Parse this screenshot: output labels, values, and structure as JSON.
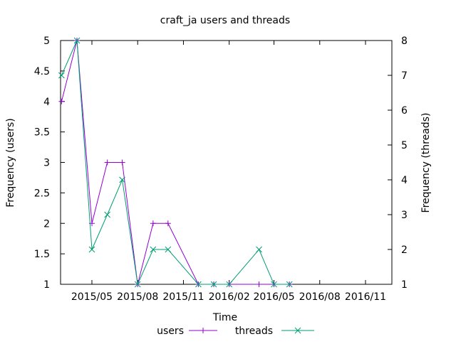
{
  "chart_data": {
    "type": "line",
    "title": "craft_ja users and threads",
    "xlabel": "Time",
    "ylabel_left": "Frequency (users)",
    "ylabel_right": "Frequency (threads)",
    "ylim_left": [
      1,
      5
    ],
    "ylim_right": [
      1,
      8
    ],
    "xlim": [
      "2015-02-27",
      "2016-12-24"
    ],
    "x_ticks": [
      {
        "date": "2015-05-01",
        "label": "2015/05"
      },
      {
        "date": "2015-08-01",
        "label": "2015/08"
      },
      {
        "date": "2015-11-01",
        "label": "2015/11"
      },
      {
        "date": "2016-02-01",
        "label": "2016/02"
      },
      {
        "date": "2016-05-01",
        "label": "2016/05"
      },
      {
        "date": "2016-08-01",
        "label": "2016/08"
      },
      {
        "date": "2016-11-01",
        "label": "2016/11"
      }
    ],
    "y_left_ticks": [
      "1",
      "1.5",
      "2",
      "2.5",
      "3",
      "3.5",
      "4",
      "4.5",
      "5"
    ],
    "y_right_ticks": [
      "1",
      "2",
      "3",
      "4",
      "5",
      "6",
      "7",
      "8"
    ],
    "grid": false,
    "legend_position": "bottom-center",
    "series": [
      {
        "name": "users",
        "axis": "left",
        "color": "#9400d3",
        "marker": "plus",
        "points": [
          {
            "x": "2015-03-01",
            "y": 4
          },
          {
            "x": "2015-04-01",
            "y": 5
          },
          {
            "x": "2015-05-01",
            "y": 2
          },
          {
            "x": "2015-06-01",
            "y": 3
          },
          {
            "x": "2015-07-01",
            "y": 3
          },
          {
            "x": "2015-08-01",
            "y": 1
          },
          {
            "x": "2015-09-01",
            "y": 2
          },
          {
            "x": "2015-10-01",
            "y": 2
          },
          {
            "x": "2015-12-01",
            "y": 1
          },
          {
            "x": "2016-01-01",
            "y": 1
          },
          {
            "x": "2016-02-01",
            "y": 1
          },
          {
            "x": "2016-04-01",
            "y": 1
          },
          {
            "x": "2016-05-01",
            "y": 1
          },
          {
            "x": "2016-06-01",
            "y": 1
          }
        ]
      },
      {
        "name": "threads",
        "axis": "right",
        "color": "#009e73",
        "marker": "cross",
        "points": [
          {
            "x": "2015-03-01",
            "y": 7
          },
          {
            "x": "2015-04-01",
            "y": 8
          },
          {
            "x": "2015-05-01",
            "y": 2
          },
          {
            "x": "2015-06-01",
            "y": 3
          },
          {
            "x": "2015-07-01",
            "y": 4
          },
          {
            "x": "2015-08-01",
            "y": 1
          },
          {
            "x": "2015-09-01",
            "y": 2
          },
          {
            "x": "2015-10-01",
            "y": 2
          },
          {
            "x": "2015-12-01",
            "y": 1
          },
          {
            "x": "2016-01-01",
            "y": 1
          },
          {
            "x": "2016-02-01",
            "y": 1
          },
          {
            "x": "2016-04-01",
            "y": 2
          },
          {
            "x": "2016-05-01",
            "y": 1
          },
          {
            "x": "2016-06-01",
            "y": 1
          }
        ]
      }
    ]
  }
}
